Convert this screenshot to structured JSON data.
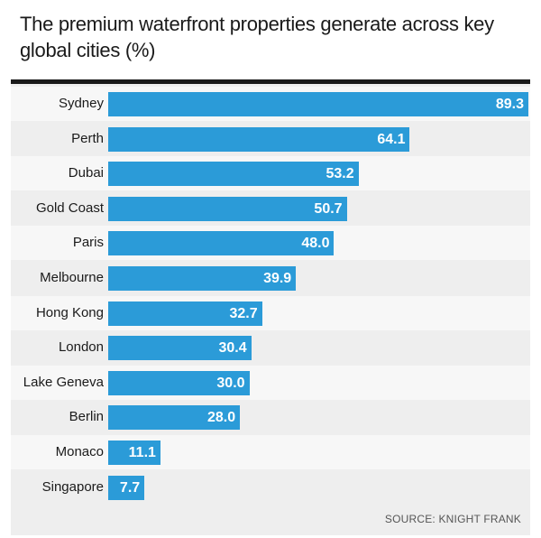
{
  "chart_data": {
    "type": "bar",
    "orientation": "horizontal",
    "title": "The premium waterfront properties generate across key global cities (%)",
    "categories": [
      "Sydney",
      "Perth",
      "Dubai",
      "Gold Coast",
      "Paris",
      "Melbourne",
      "Hong Kong",
      "London",
      "Lake Geneva",
      "Berlin",
      "Monaco",
      "Singapore"
    ],
    "values": [
      89.3,
      64.1,
      53.2,
      50.7,
      48.0,
      39.9,
      32.7,
      30.4,
      30.0,
      28.0,
      11.1,
      7.7
    ],
    "value_labels": [
      "89.3",
      "64.1",
      "53.2",
      "50.7",
      "48.0",
      "39.9",
      "32.7",
      "30.4",
      "30.0",
      "28.0",
      "11.1",
      "7.7"
    ],
    "xlim": [
      0,
      89.3
    ],
    "xlabel": "",
    "ylabel": "",
    "grid": false,
    "bar_color": "#2b9bd8",
    "source": "SOURCE: KNIGHT FRANK"
  }
}
